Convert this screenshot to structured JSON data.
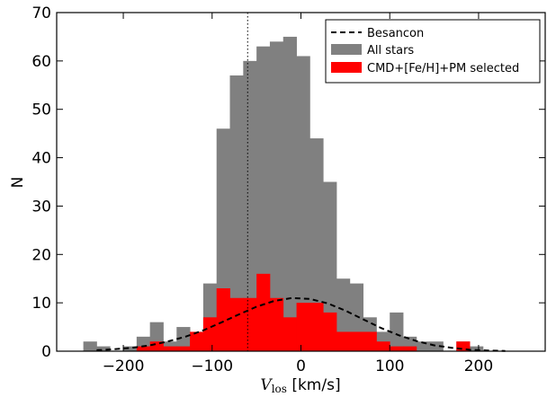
{
  "chart_data": {
    "type": "bar",
    "bin_width": 15,
    "xlim": [
      -275,
      275
    ],
    "ylim": [
      0,
      70
    ],
    "xticks": [
      -200,
      -100,
      0,
      100,
      200
    ],
    "yticks": [
      0,
      10,
      20,
      30,
      40,
      50,
      60,
      70
    ],
    "xticks_labels": [
      "−200",
      "−100",
      "0",
      "100",
      "200"
    ],
    "yticks_labels": [
      "0",
      "10",
      "20",
      "30",
      "40",
      "50",
      "60",
      "70"
    ],
    "xlabel_main": "V",
    "xlabel_sub": "los",
    "xlabel_units": " [km/s]",
    "ylabel": "N",
    "vline_x": -60,
    "legend_position": "upper-right",
    "series": [
      {
        "name": "All stars",
        "color": "#808080",
        "bin_left": [
          -245,
          -230,
          -215,
          -200,
          -185,
          -170,
          -155,
          -140,
          -125,
          -110,
          -95,
          -80,
          -65,
          -50,
          -35,
          -20,
          -5,
          10,
          25,
          40,
          55,
          70,
          85,
          100,
          115,
          130,
          145,
          160,
          175,
          190
        ],
        "counts": [
          2,
          1,
          0,
          1,
          3,
          6,
          2,
          5,
          4,
          14,
          46,
          57,
          60,
          63,
          64,
          65,
          61,
          44,
          35,
          15,
          14,
          7,
          4,
          8,
          3,
          2,
          2,
          0,
          2,
          1
        ]
      },
      {
        "name": "CMD+[Fe/H]+PM selected",
        "color": "#ff0000",
        "bin_left": [
          -245,
          -230,
          -215,
          -200,
          -185,
          -170,
          -155,
          -140,
          -125,
          -110,
          -95,
          -80,
          -65,
          -50,
          -35,
          -20,
          -5,
          10,
          25,
          40,
          55,
          70,
          85,
          100,
          115,
          130,
          145,
          160,
          175,
          190
        ],
        "counts": [
          0,
          0,
          0,
          0,
          1,
          2,
          1,
          1,
          4,
          7,
          13,
          11,
          11,
          16,
          11,
          7,
          10,
          10,
          8,
          4,
          4,
          4,
          2,
          1,
          1,
          0,
          0,
          0,
          2,
          0
        ]
      }
    ],
    "model": {
      "name": "Besancon",
      "style": "dashed",
      "color": "#000000",
      "x": [
        -230,
        -210,
        -190,
        -170,
        -150,
        -130,
        -110,
        -90,
        -70,
        -50,
        -30,
        -10,
        10,
        30,
        50,
        70,
        90,
        110,
        130,
        150,
        170,
        190,
        210,
        230
      ],
      "y": [
        0.2,
        0.4,
        0.7,
        1.2,
        2.0,
        3.0,
        4.3,
        5.9,
        7.6,
        9.2,
        10.4,
        11.0,
        10.8,
        9.9,
        8.4,
        6.6,
        4.8,
        3.3,
        2.1,
        1.2,
        0.7,
        0.3,
        0.15,
        0.05
      ]
    }
  }
}
